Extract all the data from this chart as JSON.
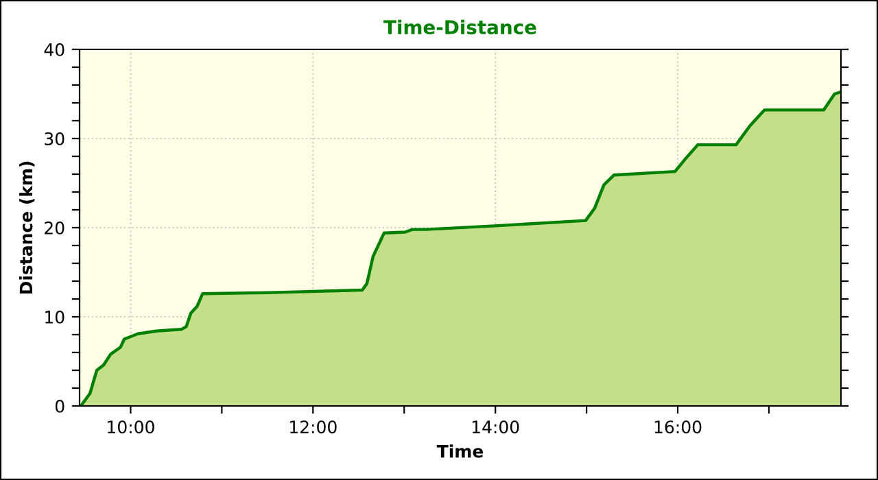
{
  "chart_data": {
    "type": "area",
    "title": "Time-Distance",
    "xlabel": "Time",
    "ylabel": "Distance (km)",
    "x": [
      9.454,
      9.554,
      9.629,
      9.704,
      9.78,
      9.89,
      9.93,
      10.08,
      10.28,
      10.56,
      10.61,
      10.66,
      10.73,
      10.79,
      11.48,
      12.54,
      12.59,
      12.66,
      12.78,
      13.01,
      13.09,
      13.24,
      13.99,
      14.99,
      15.09,
      15.19,
      15.3,
      15.97,
      16.09,
      16.22,
      16.64,
      16.79,
      16.95,
      17.6,
      17.72,
      17.78
    ],
    "series": [
      {
        "color": "#008000",
        "values": [
          0,
          1.4,
          4.0,
          4.6,
          5.8,
          6.6,
          7.5,
          8.1,
          8.4,
          8.6,
          8.9,
          10.4,
          11.2,
          12.6,
          12.7,
          13.0,
          13.7,
          16.8,
          19.4,
          19.5,
          19.8,
          19.8,
          20.2,
          20.8,
          22.2,
          24.8,
          25.9,
          26.3,
          27.8,
          29.3,
          29.3,
          31.4,
          33.2,
          33.2,
          35.0,
          35.2
        ]
      }
    ],
    "xlim": [
      9.44,
      17.79
    ],
    "ylim": [
      0,
      40
    ],
    "xticks": [
      {
        "value": 10,
        "label": "10:00"
      },
      {
        "value": 11,
        "label": null
      },
      {
        "value": 12,
        "label": "12:00"
      },
      {
        "value": 13,
        "label": null
      },
      {
        "value": 14,
        "label": "14:00"
      },
      {
        "value": 15,
        "label": null
      },
      {
        "value": 16,
        "label": "16:00"
      },
      {
        "value": 17,
        "label": null
      }
    ],
    "yticks": [
      0,
      {
        "value": 2,
        "label": null
      },
      {
        "value": 4,
        "label": null
      },
      {
        "value": 6,
        "label": null
      },
      {
        "value": 8,
        "label": null
      },
      10,
      {
        "value": 12,
        "label": null
      },
      {
        "value": 14,
        "label": null
      },
      {
        "value": 16,
        "label": null
      },
      {
        "value": 18,
        "label": null
      },
      20,
      {
        "value": 22,
        "label": null
      },
      {
        "value": 24,
        "label": null
      },
      {
        "value": 26,
        "label": null
      },
      {
        "value": 28,
        "label": null
      },
      30,
      {
        "value": 32,
        "label": null
      },
      {
        "value": 34,
        "label": null
      },
      {
        "value": 36,
        "label": null
      },
      {
        "value": 38,
        "label": null
      },
      40
    ],
    "grid": true,
    "line_style": "solid"
  }
}
